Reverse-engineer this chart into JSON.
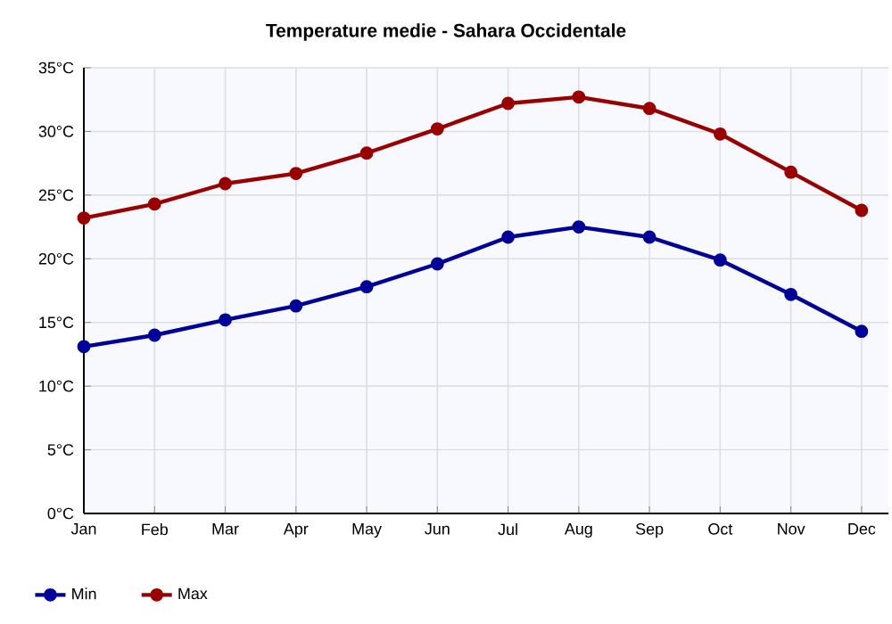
{
  "chart_data": {
    "type": "line",
    "title": "Temperature medie - Sahara Occidentale",
    "categories": [
      "Jan",
      "Feb",
      "Mar",
      "Apr",
      "May",
      "Jun",
      "Jul",
      "Aug",
      "Sep",
      "Oct",
      "Nov",
      "Dec"
    ],
    "series": [
      {
        "name": "Min",
        "color": "#000099",
        "values": [
          13.1,
          14.0,
          15.2,
          16.3,
          17.8,
          19.6,
          21.7,
          22.5,
          21.7,
          19.9,
          17.2,
          14.3
        ]
      },
      {
        "name": "Max",
        "color": "#990000",
        "values": [
          23.2,
          24.3,
          25.9,
          26.7,
          28.3,
          30.2,
          32.2,
          32.7,
          31.8,
          29.8,
          26.8,
          23.8
        ]
      }
    ],
    "ylim": [
      0,
      35
    ],
    "yticks": [
      {
        "value": 0,
        "label": "0°C"
      },
      {
        "value": 5,
        "label": "5°C"
      },
      {
        "value": 10,
        "label": "10°C"
      },
      {
        "value": 15,
        "label": "15°C"
      },
      {
        "value": 20,
        "label": "20°C"
      },
      {
        "value": 25,
        "label": "25°C"
      },
      {
        "value": 30,
        "label": "30°C"
      },
      {
        "value": 35,
        "label": "35°C"
      }
    ],
    "grid": true,
    "legend": "bottom left",
    "marker": "circle",
    "line_style": "solid"
  }
}
